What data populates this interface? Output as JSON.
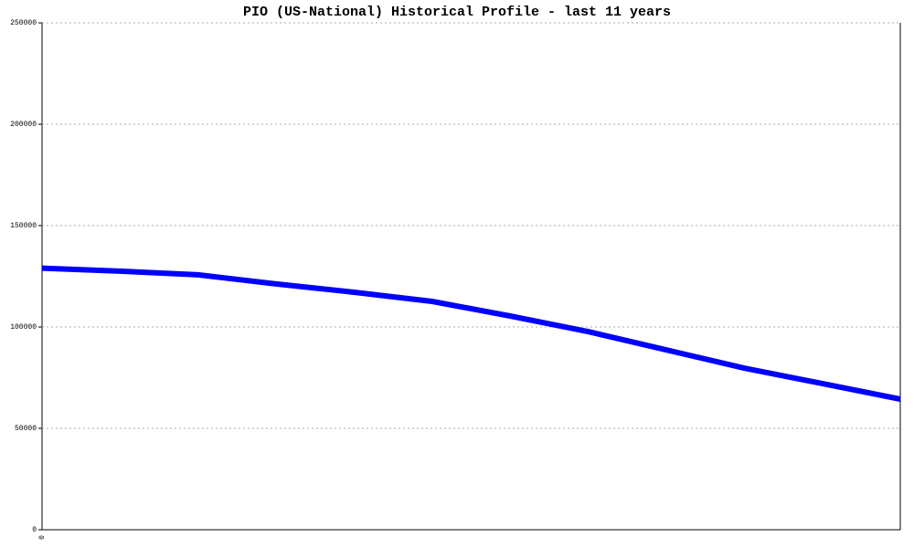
{
  "chart_data": {
    "type": "line",
    "title": "PIO (US-National) Historical Profile - last 11 years",
    "categories": [
      "0",
      null,
      null,
      null,
      null,
      null,
      null,
      null,
      null,
      null,
      null,
      null
    ],
    "series": [
      {
        "name": "PIO",
        "color": "#0000ff",
        "values": [
          129000,
          127500,
          125700,
          121200,
          117100,
          112600,
          105400,
          97700,
          88700,
          79700,
          72100,
          64400
        ]
      }
    ],
    "ylim": [
      0,
      250000
    ],
    "yticks": [
      0,
      50000,
      100000,
      150000,
      200000,
      250000
    ],
    "grid": true
  }
}
